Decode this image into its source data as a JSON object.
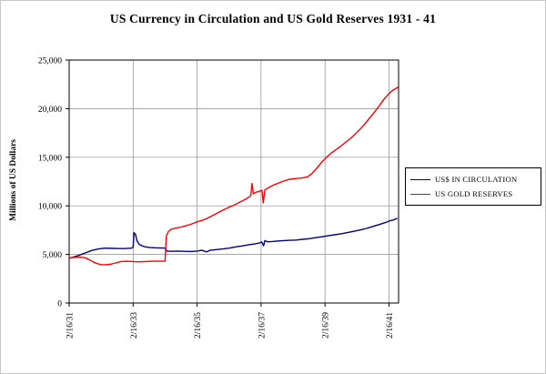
{
  "page_title": "US Currency in Circulation and US Gold Reserves 1931 - 41",
  "chart_data": {
    "type": "line",
    "title": "US Currency in Circulation and US Gold Reserves 1931 - 41",
    "xlabel": "",
    "ylabel": "Millions of US Dollars",
    "ylim": [
      0,
      25000
    ],
    "xlim": [
      0,
      10.3
    ],
    "x_unit": "years since 2/16/1931",
    "grid": true,
    "legend_position": "right",
    "y_ticks": [
      0,
      5000,
      10000,
      15000,
      20000,
      25000
    ],
    "y_tick_labels": [
      "0",
      "5,000",
      "10,000",
      "15,000",
      "20,000",
      "25,000"
    ],
    "x_ticks": [
      0,
      2,
      4,
      6,
      8,
      10
    ],
    "x_tick_labels": [
      "2/16/31",
      "2/16/33",
      "2/16/35",
      "2/16/37",
      "2/16/39",
      "2/16/41"
    ],
    "colors": {
      "axis": "#000000",
      "grid": "#8c8c8c",
      "background": "#ffffff"
    },
    "series": [
      {
        "name": "US$ IN CIRCULATION",
        "color": "#000080",
        "points": [
          [
            0,
            4600
          ],
          [
            0.15,
            4750
          ],
          [
            0.3,
            4900
          ],
          [
            0.5,
            5150
          ],
          [
            0.7,
            5400
          ],
          [
            0.9,
            5550
          ],
          [
            1.1,
            5650
          ],
          [
            1.4,
            5620
          ],
          [
            1.7,
            5600
          ],
          [
            1.95,
            5650
          ],
          [
            2.0,
            5750
          ],
          [
            2.03,
            7250
          ],
          [
            2.08,
            7000
          ],
          [
            2.12,
            6400
          ],
          [
            2.2,
            6000
          ],
          [
            2.35,
            5800
          ],
          [
            2.5,
            5720
          ],
          [
            2.7,
            5680
          ],
          [
            2.95,
            5660
          ],
          [
            3.0,
            5650
          ],
          [
            3.05,
            5350
          ],
          [
            3.2,
            5320
          ],
          [
            3.4,
            5350
          ],
          [
            3.6,
            5320
          ],
          [
            3.8,
            5300
          ],
          [
            4.0,
            5350
          ],
          [
            4.15,
            5420
          ],
          [
            4.3,
            5260
          ],
          [
            4.4,
            5420
          ],
          [
            4.6,
            5500
          ],
          [
            4.8,
            5560
          ],
          [
            5.0,
            5650
          ],
          [
            5.2,
            5780
          ],
          [
            5.4,
            5870
          ],
          [
            5.6,
            5980
          ],
          [
            5.8,
            6080
          ],
          [
            5.95,
            6180
          ],
          [
            6.02,
            6280
          ],
          [
            6.08,
            5900
          ],
          [
            6.12,
            6420
          ],
          [
            6.2,
            6300
          ],
          [
            6.35,
            6330
          ],
          [
            6.5,
            6380
          ],
          [
            6.7,
            6420
          ],
          [
            6.9,
            6450
          ],
          [
            7.1,
            6480
          ],
          [
            7.3,
            6550
          ],
          [
            7.5,
            6620
          ],
          [
            7.7,
            6720
          ],
          [
            7.9,
            6820
          ],
          [
            8.1,
            6920
          ],
          [
            8.3,
            7020
          ],
          [
            8.5,
            7130
          ],
          [
            8.7,
            7250
          ],
          [
            8.9,
            7380
          ],
          [
            9.1,
            7520
          ],
          [
            9.3,
            7680
          ],
          [
            9.5,
            7880
          ],
          [
            9.7,
            8080
          ],
          [
            9.9,
            8300
          ],
          [
            10.05,
            8480
          ],
          [
            10.15,
            8560
          ],
          [
            10.25,
            8700
          ]
        ]
      },
      {
        "name": "US GOLD RESERVES",
        "color": "#ff0000",
        "points": [
          [
            0,
            4650
          ],
          [
            0.2,
            4700
          ],
          [
            0.35,
            4720
          ],
          [
            0.5,
            4650
          ],
          [
            0.62,
            4480
          ],
          [
            0.75,
            4230
          ],
          [
            0.88,
            4050
          ],
          [
            1.0,
            3950
          ],
          [
            1.15,
            3940
          ],
          [
            1.3,
            4000
          ],
          [
            1.45,
            4120
          ],
          [
            1.6,
            4250
          ],
          [
            1.75,
            4300
          ],
          [
            1.9,
            4290
          ],
          [
            2.05,
            4250
          ],
          [
            2.2,
            4240
          ],
          [
            2.4,
            4270
          ],
          [
            2.6,
            4300
          ],
          [
            2.8,
            4300
          ],
          [
            3.0,
            4300
          ],
          [
            3.04,
            6900
          ],
          [
            3.1,
            7350
          ],
          [
            3.2,
            7600
          ],
          [
            3.35,
            7720
          ],
          [
            3.5,
            7820
          ],
          [
            3.65,
            7950
          ],
          [
            3.8,
            8100
          ],
          [
            4.0,
            8350
          ],
          [
            4.2,
            8550
          ],
          [
            4.4,
            8850
          ],
          [
            4.6,
            9200
          ],
          [
            4.8,
            9550
          ],
          [
            5.0,
            9850
          ],
          [
            5.2,
            10150
          ],
          [
            5.35,
            10400
          ],
          [
            5.5,
            10650
          ],
          [
            5.6,
            10850
          ],
          [
            5.68,
            11050
          ],
          [
            5.72,
            12300
          ],
          [
            5.76,
            11250
          ],
          [
            5.85,
            11400
          ],
          [
            5.95,
            11500
          ],
          [
            6.03,
            11600
          ],
          [
            6.07,
            10300
          ],
          [
            6.12,
            11650
          ],
          [
            6.25,
            11900
          ],
          [
            6.4,
            12150
          ],
          [
            6.55,
            12350
          ],
          [
            6.7,
            12550
          ],
          [
            6.85,
            12700
          ],
          [
            7.0,
            12780
          ],
          [
            7.15,
            12820
          ],
          [
            7.3,
            12880
          ],
          [
            7.45,
            12980
          ],
          [
            7.6,
            13350
          ],
          [
            7.75,
            13900
          ],
          [
            7.9,
            14500
          ],
          [
            8.05,
            15000
          ],
          [
            8.2,
            15450
          ],
          [
            8.35,
            15800
          ],
          [
            8.5,
            16150
          ],
          [
            8.65,
            16550
          ],
          [
            8.8,
            16950
          ],
          [
            8.95,
            17400
          ],
          [
            9.1,
            17900
          ],
          [
            9.25,
            18450
          ],
          [
            9.4,
            19050
          ],
          [
            9.55,
            19650
          ],
          [
            9.7,
            20300
          ],
          [
            9.85,
            21000
          ],
          [
            10.0,
            21550
          ],
          [
            10.1,
            21850
          ],
          [
            10.2,
            22050
          ],
          [
            10.28,
            22200
          ]
        ]
      }
    ]
  }
}
